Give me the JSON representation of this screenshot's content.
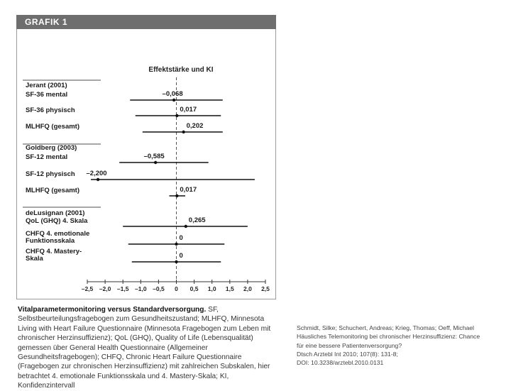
{
  "figure": {
    "header": "GRAFIK 1",
    "caption_title": "Vitalparametermonitoring versus Standardversorgung.",
    "caption_body": " SF, Selbstbeurteilungsfragebogen zum Gesundheitszustand; MLHFQ, Minnesota Living with Heart Failure Questionnaire (Minnesota Fragebogen zum Leben mit chronischer Herzinsuffizienz); QoL (GHQ), Quality of Life (Lebensqualität) gemessen über General Health Questionnaire (Allgemeiner Gesundheitsfragebogen); CHFQ, Chronic Heart Failure Questionnaire (Fragebogen zur chronischen Herzinsuffizienz) mit zahlreichen Subskalen, hier betrachtet 4. emotionale Funktionsskala und 4. Mastery-Skala; KI, Konfidenzintervall"
  },
  "citation": {
    "lines": [
      "Schmidt, Silke; Schuchert, Andreas; Krieg, Thomas; Oeff, Michael",
      "Häusliches Telemonitoring bei chronischer Herzinsuffizienz: Chance",
      "für eine bessere Patientenversorgung?",
      "Dtsch Arztebl Int 2010; 107(8): 131-8;",
      "DOI: 10.3238/arztebl.2010.0131"
    ]
  },
  "chart_data": {
    "type": "forest",
    "column_title": "Effektstärke und KI",
    "xlim": [
      -2.5,
      2.5
    ],
    "xticks": [
      -2.5,
      -2.0,
      -1.5,
      -1.0,
      -0.5,
      0,
      0.5,
      1.0,
      1.5,
      2.0,
      2.5
    ],
    "xtick_labels": [
      "–2,5",
      "–2,0",
      "–1,5",
      "–1,0",
      "–0,5",
      "0",
      "0,5",
      "1,0",
      "1,5",
      "2,0",
      "2,5"
    ],
    "reference_line": 0,
    "groups": [
      {
        "study": "Jerant (2001)",
        "rows": [
          {
            "label": [
              "SF-36 mental"
            ],
            "effect": -0.068,
            "value_label": "–0,068",
            "ci": [
              -1.3,
              1.3
            ]
          },
          {
            "label": [
              "SF-36 physisch"
            ],
            "effect": 0.017,
            "value_label": "0,017",
            "ci": [
              -1.15,
              1.25
            ]
          },
          {
            "label": [
              "MLHFQ (gesamt)"
            ],
            "effect": 0.202,
            "value_label": "0,202",
            "ci": [
              -0.95,
              1.3
            ]
          }
        ]
      },
      {
        "study": "Goldberg (2003)",
        "rows": [
          {
            "label": [
              "SF-12 mental"
            ],
            "effect": -0.585,
            "value_label": "–0,585",
            "ci": [
              -1.6,
              0.9
            ]
          },
          {
            "label": [
              "SF-12 physisch"
            ],
            "effect": -2.2,
            "value_label": "–2,200",
            "ci": [
              -2.4,
              2.2
            ]
          },
          {
            "label": [
              "MLHFQ (gesamt)"
            ],
            "effect": 0.017,
            "value_label": "0,017",
            "ci": [
              -0.2,
              0.25
            ]
          }
        ]
      },
      {
        "study": "deLusignan (2001)",
        "rows": [
          {
            "label": [
              "QoL (GHQ) 4. Skala"
            ],
            "effect": 0.265,
            "value_label": "0,265",
            "ci": [
              -1.5,
              2.0
            ]
          },
          {
            "label": [
              "CHFQ 4. emotionale",
              "Funktionsskala"
            ],
            "effect": 0,
            "value_label": "0",
            "ci": [
              -1.35,
              1.35
            ]
          },
          {
            "label": [
              "CHFQ 4. Mastery-",
              "Skala"
            ],
            "effect": 0,
            "value_label": "0",
            "ci": [
              -1.25,
              1.25
            ]
          }
        ]
      }
    ]
  }
}
